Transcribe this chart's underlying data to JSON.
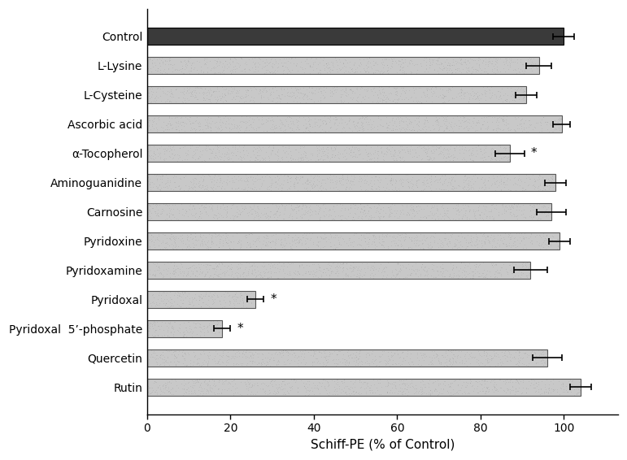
{
  "categories": [
    "Rutin",
    "Quercetin",
    "Pyridoxal  5’-phosphate",
    "Pyridoxal",
    "Pyridoxamine",
    "Pyridoxine",
    "Carnosine",
    "Aminoguanidine",
    "α-Tocopherol",
    "Ascorbic acid",
    "L-Cysteine",
    "L-Lysine",
    "Control"
  ],
  "values": [
    104.0,
    96.0,
    18.0,
    26.0,
    92.0,
    99.0,
    97.0,
    98.0,
    87.0,
    99.5,
    91.0,
    94.0,
    100.0
  ],
  "errors": [
    2.5,
    3.5,
    2.0,
    2.0,
    4.0,
    2.5,
    3.5,
    2.5,
    3.5,
    2.0,
    2.5,
    3.0,
    2.5
  ],
  "significant": [
    false,
    false,
    true,
    true,
    false,
    false,
    false,
    false,
    true,
    false,
    false,
    false,
    false
  ],
  "control_color": "#3a3a3a",
  "bar_facecolor": "#c8c8c8",
  "xlabel": "Schiff-PE (% of Control)",
  "xlim": [
    0,
    113
  ],
  "xticks": [
    0,
    20,
    40,
    60,
    80,
    100
  ],
  "background_color": "#ffffff",
  "bar_height": 0.6,
  "fontsize_labels": 10,
  "fontsize_xlabel": 11
}
